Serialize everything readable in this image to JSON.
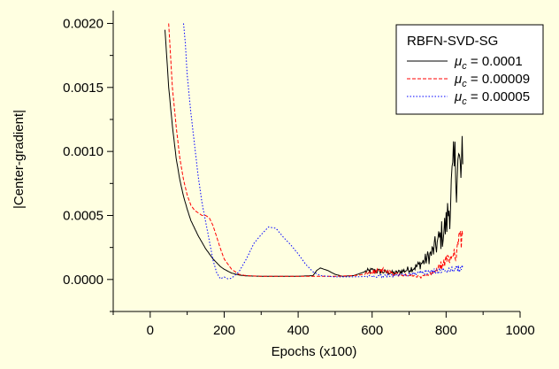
{
  "chart_data": {
    "type": "line",
    "title": "",
    "xlabel": "Epochs (x100)",
    "ylabel": "|Center-gradient|",
    "xlim": [
      -100,
      1000
    ],
    "ylim": [
      -0.00025,
      0.0021
    ],
    "xticks": [
      0,
      200,
      400,
      600,
      800,
      1000
    ],
    "yticks": [
      0.0,
      0.0005,
      0.001,
      0.0015,
      0.002
    ],
    "ytick_labels": [
      "0.0000",
      "0.0005",
      "0.0010",
      "0.0015",
      "0.0020"
    ],
    "grid": false,
    "legend": {
      "title": "RBFN-SVD-SG",
      "placement": "top-right",
      "mu_symbol": "μ",
      "mu_sub": "c"
    },
    "series": [
      {
        "name": "= 0.0001",
        "color": "#000000",
        "dash": "solid",
        "x": [
          40,
          50,
          60,
          70,
          80,
          90,
          100,
          110,
          120,
          130,
          140,
          150,
          160,
          170,
          180,
          190,
          200,
          220,
          240,
          260,
          300,
          350,
          400,
          440,
          450,
          460,
          480,
          500,
          520,
          550,
          580,
          600,
          630,
          660,
          690,
          720,
          740,
          760,
          780,
          800,
          810,
          820,
          830,
          840,
          845
        ],
        "y": [
          0.00195,
          0.0015,
          0.0012,
          0.00095,
          0.00078,
          0.00065,
          0.00055,
          0.00046,
          0.0004,
          0.00034,
          0.00029,
          0.00024,
          0.0002,
          0.00016,
          0.00013,
          0.0001,
          8e-05,
          5e-05,
          3.5e-05,
          2.8e-05,
          2.5e-05,
          2.5e-05,
          2.5e-05,
          3e-05,
          7e-05,
          9e-05,
          7e-05,
          4e-05,
          2.5e-05,
          3e-05,
          6e-05,
          7e-05,
          6e-05,
          5e-05,
          7e-05,
          0.0001,
          0.00014,
          0.0002,
          0.0003,
          0.00042,
          0.0006,
          0.0008,
          0.00095,
          0.0008,
          0.0009
        ]
      },
      {
        "name": "= 0.00009",
        "color": "#ff0000",
        "dash": "4,2",
        "x": [
          50,
          55,
          60,
          70,
          80,
          90,
          100,
          110,
          120,
          130,
          140,
          150,
          160,
          170,
          180,
          190,
          200,
          220,
          240,
          260,
          300,
          350,
          400,
          450,
          500,
          550,
          580,
          600,
          630,
          660,
          700,
          730,
          760,
          780,
          800,
          820,
          835,
          845
        ],
        "y": [
          0.002,
          0.00175,
          0.0015,
          0.0012,
          0.00095,
          0.00078,
          0.00066,
          0.00058,
          0.00054,
          0.00052,
          0.0005,
          0.0005,
          0.00048,
          0.00042,
          0.00033,
          0.00024,
          0.00016,
          8e-05,
          4e-05,
          3e-05,
          2.5e-05,
          2.5e-05,
          2.5e-05,
          2.5e-05,
          2.5e-05,
          3e-05,
          4e-05,
          6e-05,
          7e-05,
          4e-05,
          3e-05,
          2e-05,
          4e-05,
          9e-05,
          0.00014,
          0.0002,
          0.00028,
          0.00034
        ]
      },
      {
        "name": "= 0.00005",
        "color": "#0000ff",
        "dash": "1.5,2",
        "x": [
          90,
          95,
          100,
          110,
          120,
          130,
          140,
          150,
          160,
          170,
          180,
          190,
          200,
          210,
          220,
          240,
          260,
          280,
          300,
          320,
          340,
          360,
          380,
          400,
          420,
          440,
          460,
          480,
          500,
          550,
          600,
          650,
          700,
          750,
          800,
          845
        ],
        "y": [
          0.002,
          0.00185,
          0.0016,
          0.0013,
          0.00105,
          0.0008,
          0.0006,
          0.00045,
          0.0003,
          0.00015,
          5e-05,
          5e-06,
          2e-05,
          5e-06,
          1e-05,
          6e-05,
          0.00016,
          0.00028,
          0.00035,
          0.00041,
          0.0004,
          0.00033,
          0.00027,
          0.0002,
          0.00012,
          6e-05,
          3e-05,
          2.5e-05,
          2e-05,
          2e-05,
          2.5e-05,
          3e-05,
          4e-05,
          6e-05,
          7e-05,
          9e-05
        ]
      }
    ]
  }
}
